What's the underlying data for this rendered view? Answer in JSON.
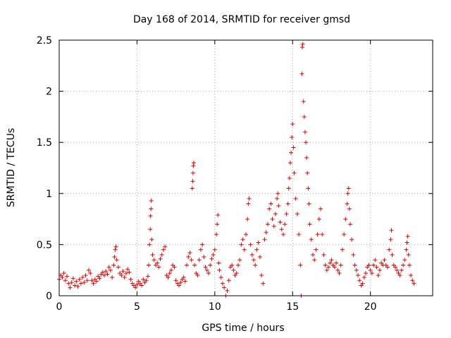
{
  "chart_data": {
    "type": "scatter",
    "title": "Day 168 of 2014, SRMTID for receiver gmsd",
    "xlabel": "GPS time / hours",
    "ylabel": "SRMTID / TECUs",
    "xlim": [
      0,
      24
    ],
    "ylim": [
      0,
      2.5
    ],
    "xticks": [
      0,
      5,
      10,
      15,
      20
    ],
    "yticks": [
      0,
      0.5,
      1,
      1.5,
      2,
      2.5
    ],
    "xtick_labels": [
      "0",
      "5",
      "10",
      "15",
      "20"
    ],
    "ytick_labels": [
      "0",
      "0.5",
      "1",
      "1.5",
      "2",
      "2.5"
    ],
    "grid": true,
    "marker": "+",
    "color": "#e00000",
    "series": [
      {
        "name": "SRMTID",
        "points": [
          [
            0.0,
            0.16
          ],
          [
            0.1,
            0.2
          ],
          [
            0.2,
            0.18
          ],
          [
            0.3,
            0.22
          ],
          [
            0.4,
            0.15
          ],
          [
            0.5,
            0.19
          ],
          [
            0.6,
            0.12
          ],
          [
            0.7,
            0.08
          ],
          [
            0.8,
            0.13
          ],
          [
            0.9,
            0.17
          ],
          [
            1.0,
            0.1
          ],
          [
            1.1,
            0.14
          ],
          [
            1.2,
            0.09
          ],
          [
            1.3,
            0.16
          ],
          [
            1.4,
            0.12
          ],
          [
            1.5,
            0.18
          ],
          [
            1.6,
            0.13
          ],
          [
            1.7,
            0.2
          ],
          [
            1.8,
            0.15
          ],
          [
            1.9,
            0.25
          ],
          [
            2.0,
            0.22
          ],
          [
            2.1,
            0.15
          ],
          [
            2.2,
            0.12
          ],
          [
            2.3,
            0.16
          ],
          [
            2.4,
            0.14
          ],
          [
            2.5,
            0.19
          ],
          [
            2.6,
            0.17
          ],
          [
            2.7,
            0.21
          ],
          [
            2.8,
            0.23
          ],
          [
            2.9,
            0.2
          ],
          [
            3.0,
            0.24
          ],
          [
            3.1,
            0.21
          ],
          [
            3.2,
            0.28
          ],
          [
            3.3,
            0.25
          ],
          [
            3.4,
            0.18
          ],
          [
            3.5,
            0.3
          ],
          [
            3.55,
            0.38
          ],
          [
            3.6,
            0.45
          ],
          [
            3.65,
            0.48
          ],
          [
            3.7,
            0.35
          ],
          [
            3.8,
            0.28
          ],
          [
            3.9,
            0.22
          ],
          [
            4.0,
            0.2
          ],
          [
            4.1,
            0.24
          ],
          [
            4.2,
            0.18
          ],
          [
            4.3,
            0.22
          ],
          [
            4.4,
            0.26
          ],
          [
            4.5,
            0.23
          ],
          [
            4.6,
            0.16
          ],
          [
            4.7,
            0.12
          ],
          [
            4.8,
            0.1
          ],
          [
            4.9,
            0.08
          ],
          [
            5.0,
            0.11
          ],
          [
            5.1,
            0.14
          ],
          [
            5.2,
            0.12
          ],
          [
            5.3,
            0.1
          ],
          [
            5.4,
            0.16
          ],
          [
            5.5,
            0.13
          ],
          [
            5.6,
            0.15
          ],
          [
            5.7,
            0.19
          ],
          [
            5.75,
            0.3
          ],
          [
            5.8,
            0.5
          ],
          [
            5.85,
            0.65
          ],
          [
            5.87,
            0.78
          ],
          [
            5.9,
            0.85
          ],
          [
            5.92,
            0.93
          ],
          [
            5.95,
            0.55
          ],
          [
            6.0,
            0.4
          ],
          [
            6.1,
            0.35
          ],
          [
            6.2,
            0.3
          ],
          [
            6.3,
            0.32
          ],
          [
            6.4,
            0.28
          ],
          [
            6.5,
            0.36
          ],
          [
            6.6,
            0.4
          ],
          [
            6.7,
            0.45
          ],
          [
            6.8,
            0.48
          ],
          [
            6.9,
            0.2
          ],
          [
            7.0,
            0.18
          ],
          [
            7.1,
            0.22
          ],
          [
            7.2,
            0.25
          ],
          [
            7.3,
            0.3
          ],
          [
            7.4,
            0.28
          ],
          [
            7.5,
            0.15
          ],
          [
            7.6,
            0.12
          ],
          [
            7.7,
            0.1
          ],
          [
            7.8,
            0.13
          ],
          [
            7.9,
            0.16
          ],
          [
            8.0,
            0.18
          ],
          [
            8.1,
            0.14
          ],
          [
            8.2,
            0.3
          ],
          [
            8.3,
            0.38
          ],
          [
            8.4,
            0.42
          ],
          [
            8.5,
            0.35
          ],
          [
            8.55,
            1.05
          ],
          [
            8.58,
            1.12
          ],
          [
            8.6,
            1.2
          ],
          [
            8.62,
            1.27
          ],
          [
            8.65,
            1.3
          ],
          [
            8.7,
            0.3
          ],
          [
            8.8,
            0.22
          ],
          [
            8.9,
            0.2
          ],
          [
            9.0,
            0.35
          ],
          [
            9.1,
            0.45
          ],
          [
            9.2,
            0.5
          ],
          [
            9.3,
            0.38
          ],
          [
            9.4,
            0.28
          ],
          [
            9.5,
            0.25
          ],
          [
            9.6,
            0.22
          ],
          [
            9.7,
            0.3
          ],
          [
            9.8,
            0.36
          ],
          [
            9.9,
            0.4
          ],
          [
            10.0,
            0.45
          ],
          [
            10.1,
            0.6
          ],
          [
            10.15,
            0.7
          ],
          [
            10.2,
            0.79
          ],
          [
            10.25,
            0.32
          ],
          [
            10.3,
            0.25
          ],
          [
            10.4,
            0.18
          ],
          [
            10.5,
            0.12
          ],
          [
            10.6,
            0.08
          ],
          [
            10.7,
            0.0
          ],
          [
            10.8,
            0.05
          ],
          [
            10.9,
            0.15
          ],
          [
            11.0,
            0.28
          ],
          [
            11.1,
            0.3
          ],
          [
            11.2,
            0.25
          ],
          [
            11.3,
            0.2
          ],
          [
            11.4,
            0.22
          ],
          [
            11.5,
            0.3
          ],
          [
            11.6,
            0.35
          ],
          [
            11.7,
            0.5
          ],
          [
            11.8,
            0.55
          ],
          [
            11.9,
            0.45
          ],
          [
            12.0,
            0.6
          ],
          [
            12.1,
            0.75
          ],
          [
            12.15,
            0.9
          ],
          [
            12.2,
            0.95
          ],
          [
            12.3,
            0.5
          ],
          [
            12.4,
            0.4
          ],
          [
            12.5,
            0.35
          ],
          [
            12.6,
            0.3
          ],
          [
            12.7,
            0.45
          ],
          [
            12.8,
            0.52
          ],
          [
            12.9,
            0.38
          ],
          [
            13.0,
            0.2
          ],
          [
            13.1,
            0.12
          ],
          [
            13.2,
            0.55
          ],
          [
            13.3,
            0.62
          ],
          [
            13.4,
            0.7
          ],
          [
            13.5,
            0.85
          ],
          [
            13.6,
            0.9
          ],
          [
            13.7,
            0.75
          ],
          [
            13.8,
            0.68
          ],
          [
            13.9,
            0.8
          ],
          [
            14.0,
            0.95
          ],
          [
            14.05,
            1.0
          ],
          [
            14.1,
            0.88
          ],
          [
            14.2,
            0.72
          ],
          [
            14.3,
            0.65
          ],
          [
            14.4,
            0.6
          ],
          [
            14.5,
            0.7
          ],
          [
            14.6,
            0.8
          ],
          [
            14.7,
            0.9
          ],
          [
            14.75,
            1.05
          ],
          [
            14.8,
            1.15
          ],
          [
            14.85,
            1.3
          ],
          [
            14.9,
            1.4
          ],
          [
            14.95,
            1.55
          ],
          [
            15.0,
            1.68
          ],
          [
            15.05,
            1.45
          ],
          [
            15.1,
            1.2
          ],
          [
            15.2,
            0.95
          ],
          [
            15.3,
            0.8
          ],
          [
            15.4,
            0.6
          ],
          [
            15.5,
            0.3
          ],
          [
            15.55,
            0.0
          ],
          [
            15.6,
            2.17
          ],
          [
            15.62,
            2.43
          ],
          [
            15.65,
            2.46
          ],
          [
            15.7,
            1.9
          ],
          [
            15.75,
            1.75
          ],
          [
            15.8,
            1.6
          ],
          [
            15.85,
            1.5
          ],
          [
            15.9,
            1.35
          ],
          [
            15.95,
            1.2
          ],
          [
            16.0,
            1.05
          ],
          [
            16.05,
            0.9
          ],
          [
            16.1,
            0.7
          ],
          [
            16.2,
            0.55
          ],
          [
            16.3,
            0.4
          ],
          [
            16.4,
            0.35
          ],
          [
            16.5,
            0.45
          ],
          [
            16.6,
            0.6
          ],
          [
            16.7,
            0.75
          ],
          [
            16.8,
            0.85
          ],
          [
            16.9,
            0.6
          ],
          [
            17.0,
            0.4
          ],
          [
            17.1,
            0.3
          ],
          [
            17.2,
            0.25
          ],
          [
            17.3,
            0.28
          ],
          [
            17.4,
            0.32
          ],
          [
            17.5,
            0.35
          ],
          [
            17.6,
            0.3
          ],
          [
            17.7,
            0.28
          ],
          [
            17.8,
            0.32
          ],
          [
            17.9,
            0.25
          ],
          [
            18.0,
            0.22
          ],
          [
            18.1,
            0.3
          ],
          [
            18.2,
            0.45
          ],
          [
            18.3,
            0.6
          ],
          [
            18.4,
            0.75
          ],
          [
            18.5,
            0.9
          ],
          [
            18.55,
            1.0
          ],
          [
            18.6,
            1.05
          ],
          [
            18.65,
            0.85
          ],
          [
            18.7,
            0.7
          ],
          [
            18.8,
            0.55
          ],
          [
            18.9,
            0.4
          ],
          [
            19.0,
            0.3
          ],
          [
            19.1,
            0.25
          ],
          [
            19.2,
            0.2
          ],
          [
            19.3,
            0.15
          ],
          [
            19.4,
            0.1
          ],
          [
            19.5,
            0.12
          ],
          [
            19.6,
            0.18
          ],
          [
            19.7,
            0.22
          ],
          [
            19.8,
            0.28
          ],
          [
            19.9,
            0.3
          ],
          [
            20.0,
            0.25
          ],
          [
            20.1,
            0.22
          ],
          [
            20.2,
            0.3
          ],
          [
            20.3,
            0.35
          ],
          [
            20.4,
            0.28
          ],
          [
            20.5,
            0.2
          ],
          [
            20.6,
            0.25
          ],
          [
            20.7,
            0.32
          ],
          [
            20.8,
            0.3
          ],
          [
            20.9,
            0.35
          ],
          [
            21.0,
            0.3
          ],
          [
            21.1,
            0.28
          ],
          [
            21.2,
            0.45
          ],
          [
            21.3,
            0.55
          ],
          [
            21.35,
            0.64
          ],
          [
            21.4,
            0.4
          ],
          [
            21.5,
            0.3
          ],
          [
            21.6,
            0.28
          ],
          [
            21.7,
            0.25
          ],
          [
            21.8,
            0.22
          ],
          [
            21.9,
            0.2
          ],
          [
            22.0,
            0.25
          ],
          [
            22.1,
            0.3
          ],
          [
            22.2,
            0.35
          ],
          [
            22.3,
            0.45
          ],
          [
            22.35,
            0.52
          ],
          [
            22.4,
            0.58
          ],
          [
            22.45,
            0.4
          ],
          [
            22.5,
            0.3
          ],
          [
            22.6,
            0.2
          ],
          [
            22.7,
            0.15
          ],
          [
            22.8,
            0.12
          ]
        ]
      }
    ]
  }
}
